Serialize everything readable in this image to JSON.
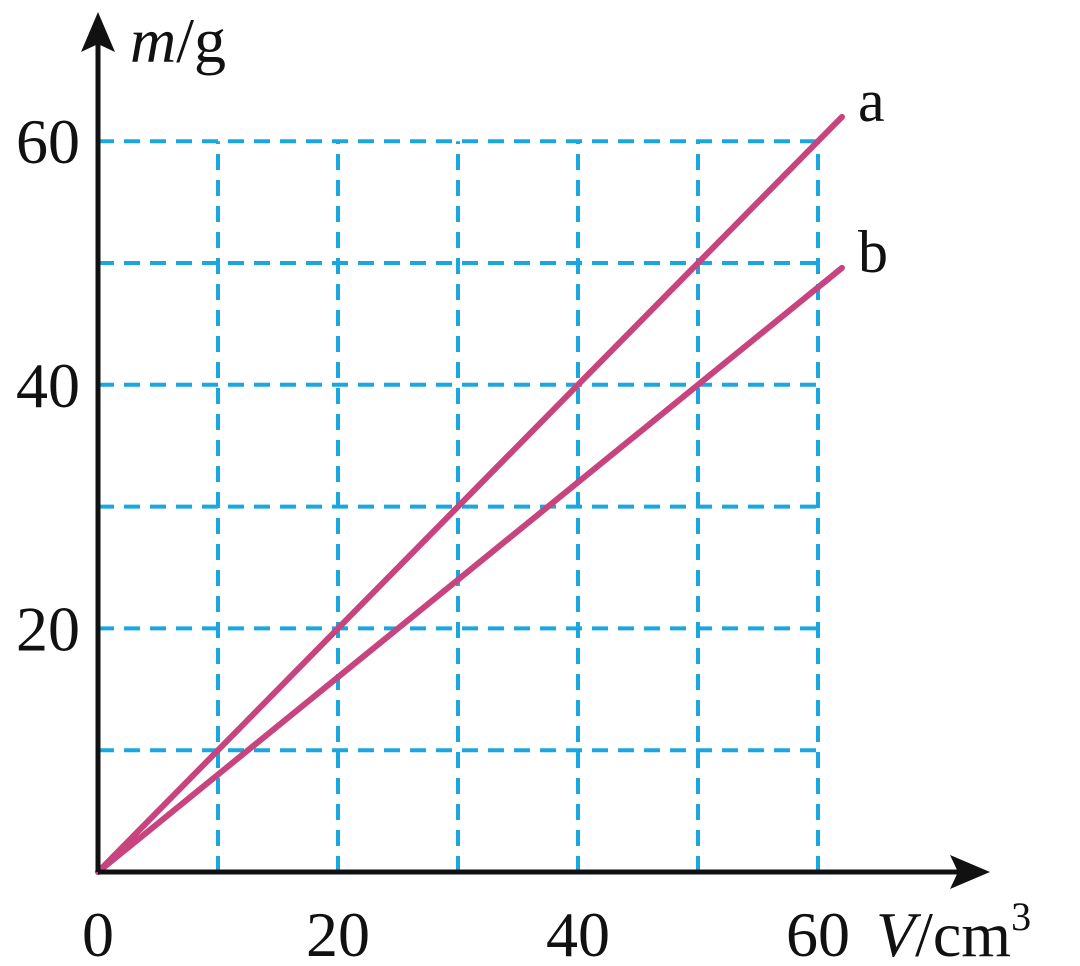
{
  "chart_data": {
    "type": "line",
    "title": "",
    "x_axis": {
      "label_var": "V",
      "label_unit": "/cm",
      "label_sup": "3",
      "range": [
        0,
        60
      ],
      "ticks": [
        0,
        20,
        40,
        60
      ],
      "tick_labels": [
        "0",
        "20",
        "40",
        "60"
      ],
      "gridlines": [
        10,
        20,
        30,
        40,
        50,
        60
      ]
    },
    "y_axis": {
      "label_var": "m",
      "label_unit": "/g",
      "range": [
        0,
        60
      ],
      "ticks": [
        20,
        40,
        60
      ],
      "tick_labels": [
        "20",
        "40",
        "60"
      ],
      "gridlines": [
        10,
        20,
        30,
        40,
        50,
        60
      ]
    },
    "grid": true,
    "grid_style": "dashed",
    "colors": {
      "grid": "#1aa7e0",
      "series": "#c8447e",
      "axis": "#111111"
    },
    "series": [
      {
        "name": "a",
        "x": [
          0,
          10,
          20,
          30,
          40,
          50,
          60,
          62
        ],
        "y": [
          0,
          10,
          20,
          30,
          40,
          50,
          60,
          62
        ]
      },
      {
        "name": "b",
        "x": [
          0,
          25,
          50,
          62
        ],
        "y": [
          0,
          20,
          40,
          49.6
        ]
      }
    ]
  }
}
